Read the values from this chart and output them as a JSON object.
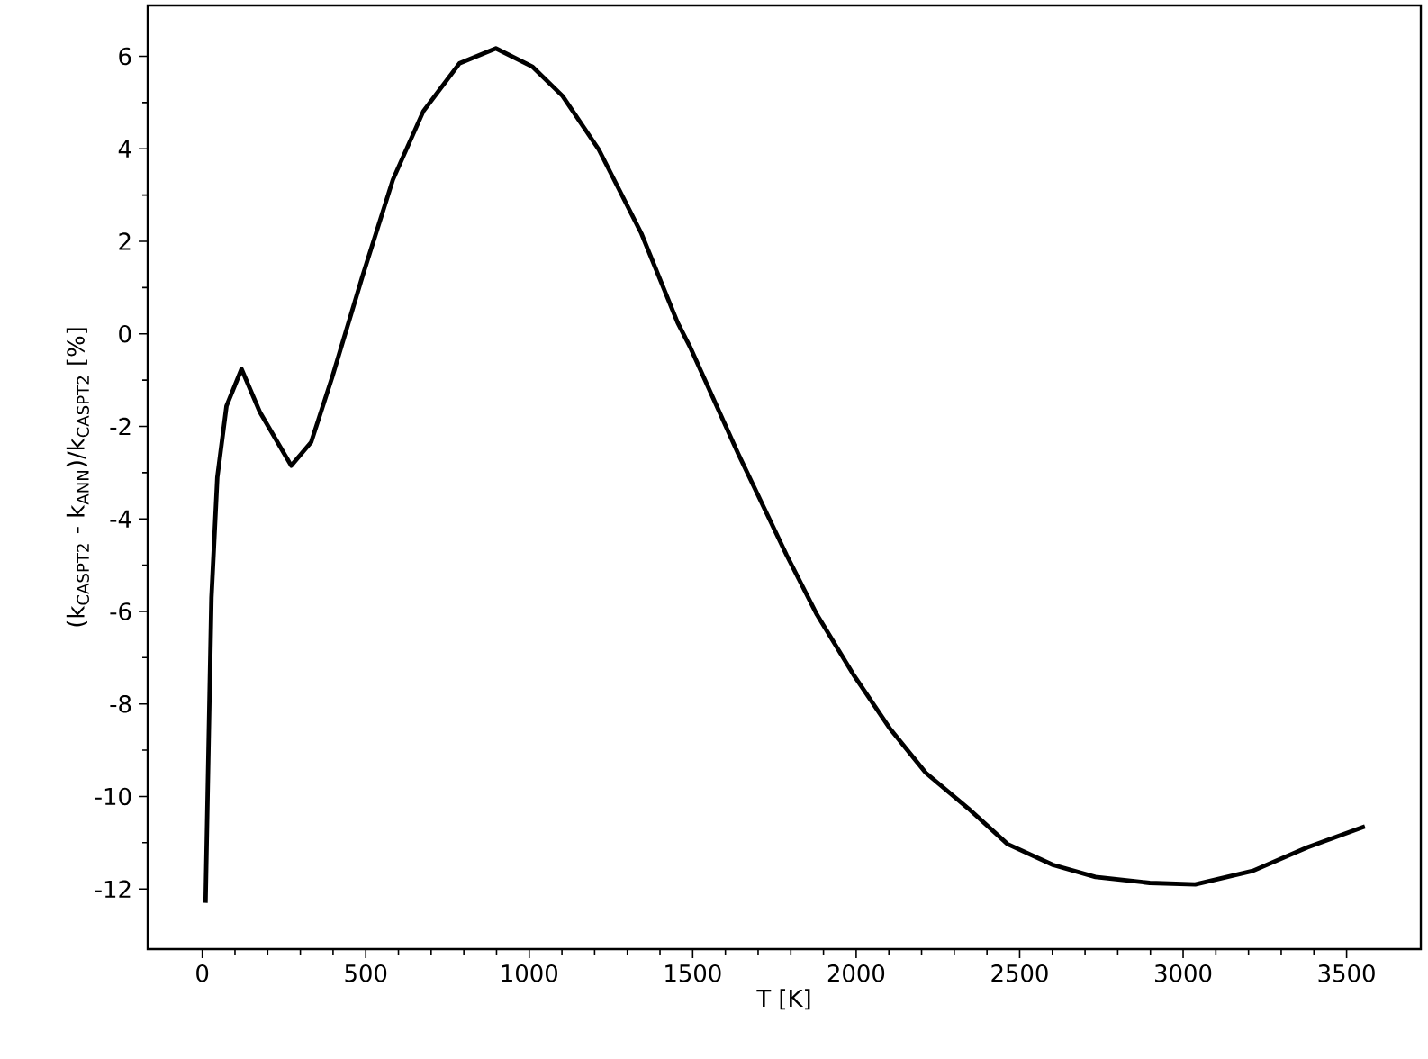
{
  "chart_data": {
    "type": "line",
    "xlabel": "T [K]",
    "ylabel": "(k$_{CASPT2}$ - k$_{ANN}$)/k$_{CASPT2}$ [%]",
    "x": [
      10,
      28,
      46,
      74,
      120,
      176,
      272,
      333,
      398,
      491,
      583,
      676,
      787,
      898,
      1009,
      1102,
      1213,
      1343,
      1454,
      1491,
      1639,
      1787,
      1880,
      1991,
      2102,
      2213,
      2343,
      2463,
      2602,
      2732,
      2898,
      3037,
      3213,
      3380,
      3556
    ],
    "series": [
      {
        "color": "#000000",
        "values": [
          -12.3,
          -5.7,
          -3.1,
          -1.56,
          -0.76,
          -1.69,
          -2.85,
          -2.34,
          -0.92,
          1.27,
          3.33,
          4.81,
          5.85,
          6.17,
          5.78,
          5.14,
          3.98,
          2.17,
          0.24,
          -0.27,
          -2.59,
          -4.78,
          -6.07,
          -7.36,
          -8.52,
          -9.49,
          -10.26,
          -11.03,
          -11.48,
          -11.74,
          -11.87,
          -11.9,
          -11.61,
          -11.1,
          -10.65
        ]
      }
    ],
    "xlim": [
      -167,
      3727
    ],
    "ylim": [
      -13.3,
      7.1
    ],
    "xticks": [
      0,
      500,
      1000,
      1500,
      2000,
      2500,
      3000,
      3500
    ],
    "yticks": [
      -12,
      -10,
      -8,
      -6,
      -4,
      -2,
      0,
      2,
      4,
      6
    ],
    "grid": false,
    "marker": "none",
    "line_style": "solid"
  }
}
